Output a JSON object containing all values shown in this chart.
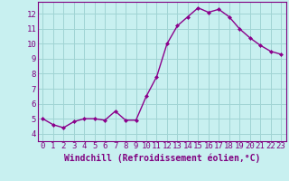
{
  "x": [
    0,
    1,
    2,
    3,
    4,
    5,
    6,
    7,
    8,
    9,
    10,
    11,
    12,
    13,
    14,
    15,
    16,
    17,
    18,
    19,
    20,
    21,
    22,
    23
  ],
  "y": [
    5.0,
    4.6,
    4.4,
    4.8,
    5.0,
    5.0,
    4.9,
    5.5,
    4.9,
    4.9,
    6.5,
    7.8,
    10.0,
    11.2,
    11.8,
    12.4,
    12.1,
    12.3,
    11.8,
    11.0,
    10.4,
    9.9,
    9.5,
    9.3
  ],
  "line_color": "#8B008B",
  "marker": "D",
  "marker_size": 2.0,
  "linewidth": 1.0,
  "xlabel": "Windchill (Refroidissement éolien,°C)",
  "xlim": [
    -0.5,
    23.5
  ],
  "ylim": [
    3.5,
    12.8
  ],
  "yticks": [
    4,
    5,
    6,
    7,
    8,
    9,
    10,
    11,
    12
  ],
  "xticks": [
    0,
    1,
    2,
    3,
    4,
    5,
    6,
    7,
    8,
    9,
    10,
    11,
    12,
    13,
    14,
    15,
    16,
    17,
    18,
    19,
    20,
    21,
    22,
    23
  ],
  "background_color": "#c8f0f0",
  "grid_color": "#a0d4d4",
  "tick_label_fontsize": 6.5,
  "xlabel_fontsize": 7.0,
  "label_color": "#800080"
}
